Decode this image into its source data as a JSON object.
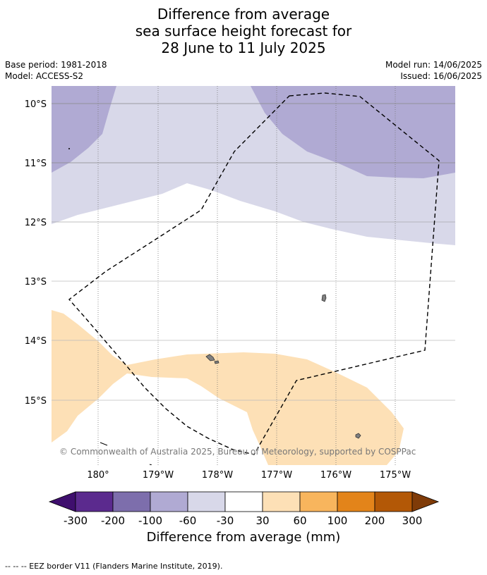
{
  "title": {
    "line1": "Difference from average",
    "line2": "sea surface height forecast for",
    "line3": "28 June to 11 July 2025"
  },
  "meta": {
    "base_period": "Base period: 1981-2018",
    "model": "Model: ACCESS-S2",
    "model_run": "Model run: 14/06/2025",
    "issued": "Issued: 16/06/2025"
  },
  "map": {
    "lat_labels": [
      "10°S",
      "11°S",
      "12°S",
      "13°S",
      "14°S",
      "15°S"
    ],
    "lon_labels": [
      "180°",
      "179°W",
      "178°W",
      "177°W",
      "176°W",
      "175°W"
    ],
    "copyright": "© Commonwealth of Australia 2025, Bureau of Meteorology, supported by COSPPac",
    "colors": {
      "band_m100_m60": "#b0aad3",
      "band_m60_m30": "#d8d8e9",
      "band_30_60": "#fde0b6",
      "eez_line": "#000000",
      "land": "#808080"
    }
  },
  "colorbar": {
    "ticks": [
      "-300",
      "-200",
      "-100",
      "-60",
      "-30",
      "30",
      "60",
      "100",
      "200",
      "300"
    ],
    "colors": [
      "#3f0f6e",
      "#5b2a8e",
      "#7d6eac",
      "#b0aad3",
      "#d8d8e9",
      "#ffffff",
      "#fde0b6",
      "#f8b55d",
      "#e3841a",
      "#b35806",
      "#7f3b08"
    ],
    "label": "Difference from average (mm)"
  },
  "footer": "--  --  -- EEZ border V11 (Flanders Marine Institute, 2019)."
}
